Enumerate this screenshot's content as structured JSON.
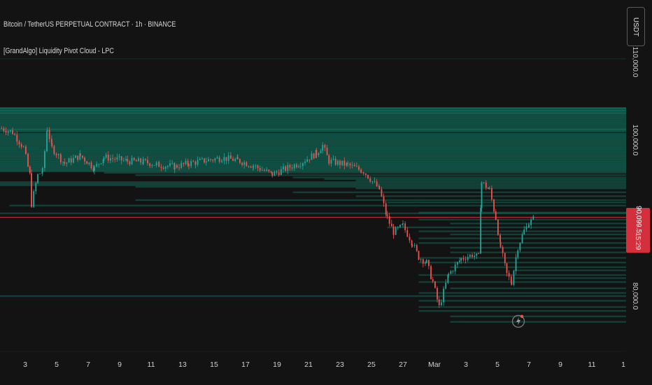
{
  "header": {
    "symbol_line": "Bitcoin / TetherUS PERPETUAL CONTRACT · 1h · BINANCE",
    "indicator_line": "[GrandAlgo] Liquidity Pivot Cloud - LPC"
  },
  "currency_button": {
    "label": "USDT"
  },
  "price_tag": {
    "price": "90,099.5",
    "countdown": "15:29"
  },
  "colors": {
    "background": "#131313",
    "cloud": "#10b998",
    "candle_up": "#26a69a",
    "candle_down": "#ef5350",
    "current_price_line": "#d42f3c"
  },
  "icons": {
    "flash": "flash-icon"
  },
  "chart_data": {
    "type": "candlestick",
    "title": "Bitcoin / TetherUS PERPETUAL CONTRACT · 1h · BINANCE",
    "ylim": [
      74000,
      114000
    ],
    "y_ticks": [
      {
        "value": 110000,
        "label": "110,000.0"
      },
      {
        "value": 100000,
        "label": "100,000.0"
      },
      {
        "value": 80000,
        "label": "80,000.0"
      }
    ],
    "x_ticks": [
      "3",
      "5",
      "7",
      "9",
      "11",
      "13",
      "15",
      "17",
      "19",
      "21",
      "23",
      "25",
      "27",
      "Mar",
      "3",
      "5",
      "7",
      "9",
      "11",
      "1"
    ],
    "x_tick_days": [
      3,
      5,
      7,
      9,
      11,
      13,
      15,
      17,
      19,
      21,
      23,
      25,
      27,
      29,
      31,
      33,
      35,
      37,
      39,
      41
    ],
    "x_range_days": [
      1.5,
      41
    ],
    "price_path": [
      [
        1.5,
        101500
      ],
      [
        2.2,
        101000
      ],
      [
        2.9,
        99000
      ],
      [
        3.3,
        95500
      ],
      [
        3.4,
        91800
      ],
      [
        3.8,
        95500
      ],
      [
        4.1,
        96000
      ],
      [
        4.4,
        101500
      ],
      [
        4.7,
        99000
      ],
      [
        5.5,
        97000
      ],
      [
        6.5,
        98000
      ],
      [
        7.4,
        96400
      ],
      [
        8.0,
        97800
      ],
      [
        9.5,
        97300
      ],
      [
        10.5,
        97200
      ],
      [
        11.5,
        96800
      ],
      [
        12.5,
        96600
      ],
      [
        13.4,
        97000
      ],
      [
        14.5,
        97400
      ],
      [
        15.5,
        97700
      ],
      [
        16.5,
        97400
      ],
      [
        17.5,
        96700
      ],
      [
        18.7,
        95600
      ],
      [
        19.4,
        96200
      ],
      [
        20.5,
        97100
      ],
      [
        21.5,
        98300
      ],
      [
        21.9,
        99300
      ],
      [
        22.3,
        97300
      ],
      [
        23.5,
        96800
      ],
      [
        24.5,
        96000
      ],
      [
        25.5,
        93700
      ],
      [
        26.0,
        90000
      ],
      [
        26.4,
        88200
      ],
      [
        27.0,
        89000
      ],
      [
        27.6,
        86800
      ],
      [
        28.0,
        85000
      ],
      [
        28.5,
        84300
      ],
      [
        28.9,
        81800
      ],
      [
        29.3,
        78600
      ],
      [
        29.9,
        82800
      ],
      [
        30.7,
        84800
      ],
      [
        31.4,
        85300
      ],
      [
        31.8,
        85000
      ],
      [
        32.0,
        94600
      ],
      [
        32.5,
        93600
      ],
      [
        32.9,
        90000
      ],
      [
        33.2,
        86300
      ],
      [
        33.6,
        82800
      ],
      [
        33.9,
        81800
      ],
      [
        34.3,
        86300
      ],
      [
        34.7,
        88400
      ],
      [
        35.0,
        89300
      ],
      [
        35.4,
        90100
      ]
    ],
    "current_price": 90099.5,
    "cloud_levels": [
      [
        0,
        104100,
        41.5
      ],
      [
        0,
        104000,
        41.5
      ],
      [
        0,
        103800,
        41.5
      ],
      [
        0,
        103700,
        41.5
      ],
      [
        0,
        103500,
        41.5
      ],
      [
        0,
        103400,
        41.5
      ],
      [
        0,
        103200,
        41.5
      ],
      [
        0,
        103000,
        41.5
      ],
      [
        0,
        102800,
        41.5
      ],
      [
        0,
        102600,
        41.5
      ],
      [
        0,
        102400,
        41.5
      ],
      [
        0,
        102200,
        41.5
      ],
      [
        0,
        102000,
        41.5
      ],
      [
        0,
        101800,
        41.5
      ],
      [
        0,
        101600,
        41.5
      ],
      [
        0,
        101400,
        41.5
      ],
      [
        0,
        101300,
        41.5
      ],
      [
        0,
        101100,
        41.5
      ],
      [
        0,
        100800,
        41.5
      ],
      [
        0,
        100600,
        41.5
      ],
      [
        0,
        100400,
        41.5
      ],
      [
        0,
        100200,
        41.5
      ],
      [
        0,
        100000,
        41.5
      ],
      [
        0,
        99800,
        41.5
      ],
      [
        0,
        99600,
        41.5
      ],
      [
        0,
        99400,
        41.5
      ],
      [
        0,
        99200,
        41.5
      ],
      [
        0,
        99000,
        41.5
      ],
      [
        0,
        98800,
        41.5
      ],
      [
        0,
        98600,
        41.5
      ],
      [
        0,
        98400,
        41.5
      ],
      [
        0,
        98200,
        41.5
      ],
      [
        0,
        98000,
        41.5
      ],
      [
        0,
        97800,
        41.5
      ],
      [
        0,
        97600,
        41.5
      ],
      [
        0,
        97400,
        41.5
      ],
      [
        0,
        97200,
        41.5
      ],
      [
        0,
        97000,
        41.5
      ],
      [
        0,
        96800,
        41.5
      ],
      [
        0,
        96600,
        41.5
      ],
      [
        0,
        96400,
        41.5
      ],
      [
        0,
        96200,
        41.5
      ],
      [
        0,
        96000,
        41.5
      ],
      [
        8,
        95800,
        41.5
      ],
      [
        10,
        95500,
        41.5
      ],
      [
        20,
        95200,
        41.5
      ],
      [
        22,
        95000,
        41.5
      ],
      [
        24,
        94800,
        41.5
      ],
      [
        0,
        94600,
        41.5
      ],
      [
        0,
        94400,
        41.5
      ],
      [
        0,
        94200,
        41.5
      ],
      [
        10,
        94000,
        41.5
      ],
      [
        24,
        93800,
        41.5
      ],
      [
        20,
        93300,
        41.5
      ],
      [
        24,
        92800,
        41.5
      ],
      [
        10,
        92300,
        41.5
      ],
      [
        26,
        92000,
        41.5
      ],
      [
        2,
        91600,
        41.5
      ],
      [
        28,
        90700,
        41.5
      ],
      [
        0,
        90600,
        41.5
      ],
      [
        28,
        89800,
        41.5
      ],
      [
        30,
        89300,
        41.5
      ],
      [
        26,
        88800,
        41.5
      ],
      [
        28,
        88300,
        41.5
      ],
      [
        30,
        87900,
        41.5
      ],
      [
        28,
        87400,
        41.5
      ],
      [
        28,
        86800,
        41.5
      ],
      [
        30,
        86200,
        41.5
      ],
      [
        30,
        85600,
        41.5
      ],
      [
        28,
        84900,
        41.5
      ],
      [
        28,
        84300,
        41.5
      ],
      [
        30,
        83700,
        41.5
      ],
      [
        34,
        83300,
        41.5
      ],
      [
        28,
        82700,
        41.5
      ],
      [
        34,
        82300,
        41.5
      ],
      [
        28,
        81800,
        41.5
      ],
      [
        30,
        81000,
        41.5
      ],
      [
        28,
        80400,
        41.5
      ],
      [
        0,
        80000,
        41.5
      ],
      [
        28,
        79400,
        41.5
      ],
      [
        28,
        78600,
        41.5
      ],
      [
        28,
        78100,
        41.5
      ],
      [
        30,
        77400,
        41.5
      ],
      [
        30,
        76700,
        41.5
      ]
    ]
  }
}
